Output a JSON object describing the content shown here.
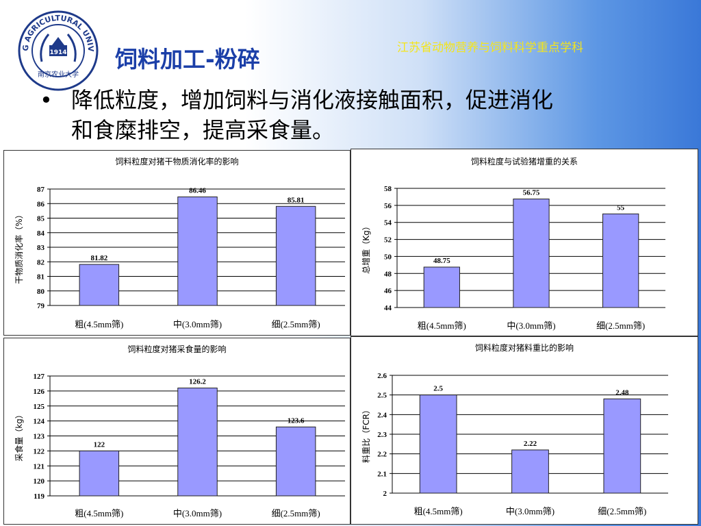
{
  "header": {
    "title": "饲料加工-粉碎",
    "subject": "江苏省动物营养与饲料科学重点学科",
    "logo": {
      "ring_text": "NANJING AGRICULTURAL UNIVERSITY",
      "year": "1914",
      "bottom_text": "南京农业大学"
    }
  },
  "bullet": {
    "symbol": "•",
    "line1": "降低粒度，增加饲料与消化液接触面积，促进消化",
    "line2": "和食糜排空，提高采食量。"
  },
  "colors": {
    "bar": "#9999ff",
    "bar_stroke": "#222222"
  },
  "chart_data": [
    {
      "type": "bar",
      "title": "饲料粒度对猪干物质消化率的影响",
      "categories": [
        "粗(4.5mm筛)",
        "中(3.0mm筛)",
        "细(2.5mm筛)"
      ],
      "values": [
        81.82,
        86.46,
        85.81
      ],
      "value_labels": [
        "81.82",
        "86.46",
        "85.81"
      ],
      "ylabel": "干物质消化率（%）",
      "ylim": [
        79,
        87
      ],
      "yticks": [
        "79",
        "80",
        "81",
        "82",
        "83",
        "84",
        "85",
        "86",
        "87"
      ],
      "grid": true
    },
    {
      "type": "bar",
      "title": "饲料粒度与试验猪增重的关系",
      "categories": [
        "粗(4.5mm筛)",
        "中(3.0mm筛)",
        "细(2.5mm筛)"
      ],
      "values": [
        48.75,
        56.75,
        55
      ],
      "value_labels": [
        "48.75",
        "56.75",
        "55"
      ],
      "ylabel": "总增重（Kg）",
      "ylim": [
        44,
        58
      ],
      "yticks": [
        "44",
        "46",
        "48",
        "50",
        "52",
        "54",
        "56",
        "58"
      ],
      "grid": true
    },
    {
      "type": "bar",
      "title": "饲料粒度对猪采食量的影响",
      "categories": [
        "粗(4.5mm筛)",
        "中(3.0mm筛)",
        "细(2.5mm筛)"
      ],
      "values": [
        122,
        126.2,
        123.6
      ],
      "value_labels": [
        "122",
        "126.2",
        "123.6"
      ],
      "ylabel": "采食量（kg）",
      "ylim": [
        119,
        127
      ],
      "yticks": [
        "119",
        "120",
        "121",
        "122",
        "123",
        "124",
        "125",
        "126",
        "127"
      ],
      "grid": true
    },
    {
      "type": "bar",
      "title": "饲料粒度对猪料重比的影响",
      "categories": [
        "粗(4.5mm筛)",
        "中(3.0mm筛)",
        "细(2.5mm筛)"
      ],
      "values": [
        2.5,
        2.22,
        2.48
      ],
      "value_labels": [
        "2.5",
        "2.22",
        "2.48"
      ],
      "ylabel": "料重比（FCR）",
      "ylim": [
        2,
        2.6
      ],
      "yticks": [
        "2",
        "2.1",
        "2.2",
        "2.3",
        "2.4",
        "2.5",
        "2.6"
      ],
      "grid": true
    }
  ]
}
